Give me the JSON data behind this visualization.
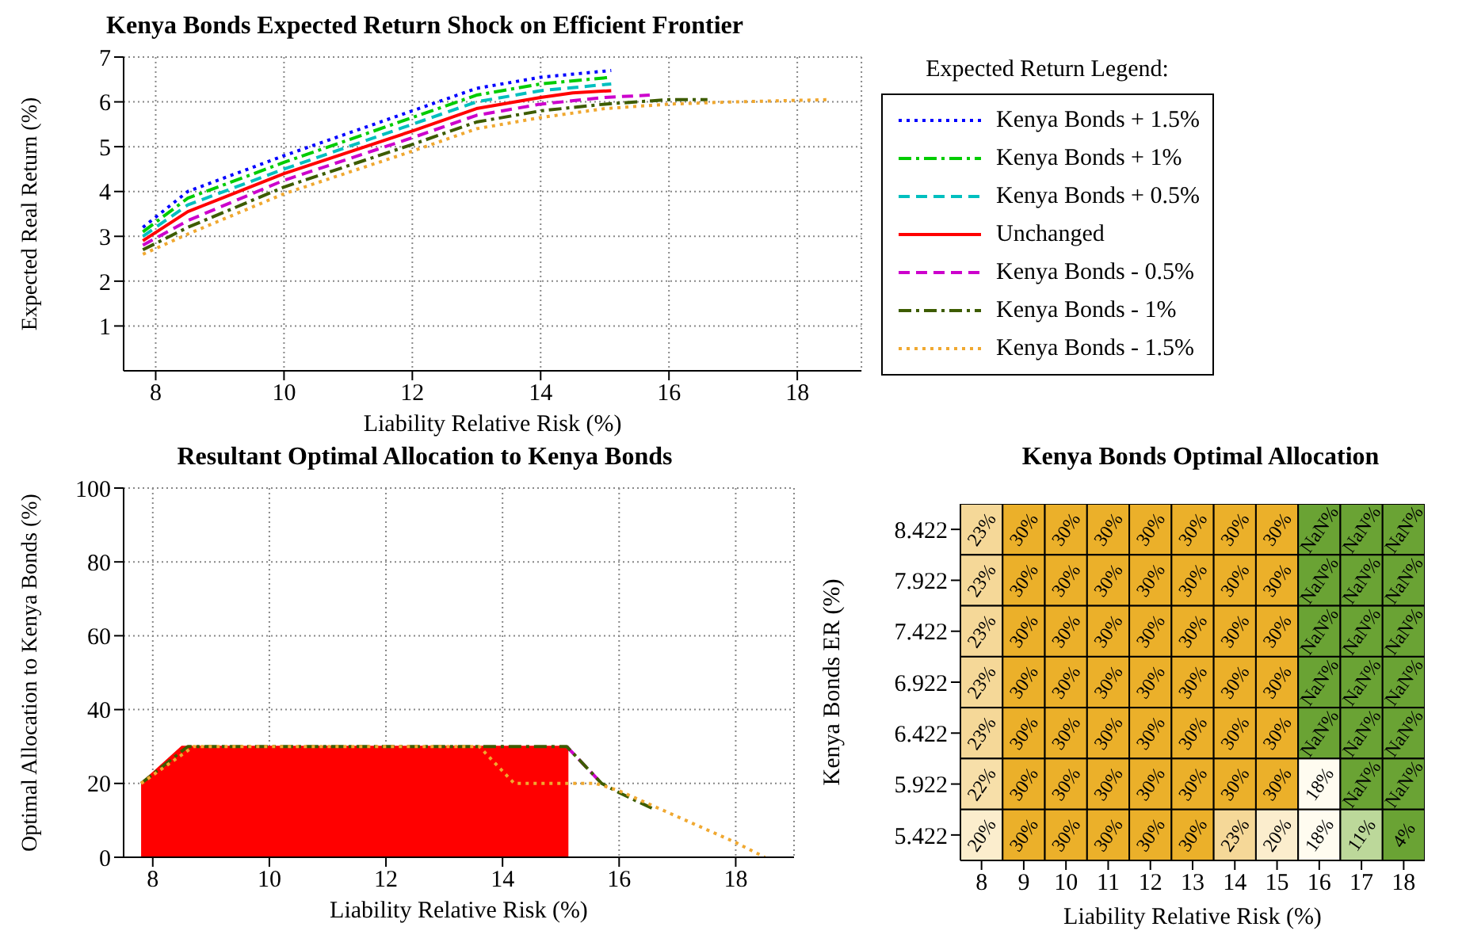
{
  "chart_data": [
    {
      "type": "line",
      "title": "Kenya Bonds Expected Return Shock on Efficient Frontier",
      "xlabel": "Liability Relative Risk (%)",
      "ylabel": "Expected Real Return (%)",
      "legend_title": "Expected Return Legend:",
      "legend": "right",
      "grid": true,
      "marker": "none",
      "xlim": [
        7.5,
        19
      ],
      "xticks": [
        8,
        10,
        12,
        14,
        16,
        18
      ],
      "ylim": [
        0,
        7
      ],
      "yticks": [
        1,
        2,
        3,
        4,
        5,
        6,
        7
      ],
      "series": [
        {
          "name": "Kenya Bonds + 1.5%",
          "color": "#0000ff",
          "line_style": "dotted",
          "x": [
            7.8,
            8.5,
            10,
            12,
            13,
            14,
            15.1
          ],
          "values": [
            3.2,
            4.0,
            4.8,
            5.8,
            6.3,
            6.55,
            6.7
          ]
        },
        {
          "name": "Kenya Bonds + 1%",
          "color": "#00cc00",
          "line_style": "dashdot",
          "x": [
            7.8,
            8.5,
            10,
            12,
            13,
            14,
            15.1
          ],
          "values": [
            3.1,
            3.85,
            4.65,
            5.65,
            6.15,
            6.4,
            6.55
          ]
        },
        {
          "name": "Kenya Bonds + 0.5%",
          "color": "#00bfbf",
          "line_style": "dashed",
          "x": [
            7.8,
            8.5,
            10,
            12,
            13,
            14,
            15.1
          ],
          "values": [
            3.0,
            3.7,
            4.5,
            5.5,
            6.0,
            6.25,
            6.4
          ]
        },
        {
          "name": "Unchanged",
          "color": "#ff0000",
          "line_style": "solid",
          "x": [
            7.8,
            8.5,
            10,
            12,
            13,
            14,
            14.5,
            15.1
          ],
          "values": [
            2.9,
            3.55,
            4.4,
            5.35,
            5.85,
            6.1,
            6.2,
            6.25
          ]
        },
        {
          "name": "Kenya Bonds - 0.5%",
          "color": "#cc00cc",
          "line_style": "dashed",
          "x": [
            7.8,
            8.5,
            10,
            12,
            13,
            14,
            15,
            15.7
          ],
          "values": [
            2.8,
            3.35,
            4.25,
            5.2,
            5.7,
            5.95,
            6.1,
            6.15
          ]
        },
        {
          "name": "Kenya Bonds - 1%",
          "color": "#3d5c00",
          "line_style": "dashdot",
          "x": [
            7.8,
            8.5,
            10,
            12,
            13,
            14,
            15,
            16,
            16.6
          ],
          "values": [
            2.7,
            3.2,
            4.1,
            5.05,
            5.55,
            5.8,
            5.95,
            6.05,
            6.05
          ]
        },
        {
          "name": "Kenya Bonds - 1.5%",
          "color": "#f0a830",
          "line_style": "dotted",
          "x": [
            7.8,
            8.5,
            10,
            12,
            13,
            14,
            15,
            16,
            17,
            18.5
          ],
          "values": [
            2.6,
            3.05,
            3.95,
            4.9,
            5.4,
            5.65,
            5.85,
            5.95,
            6.0,
            6.05
          ]
        }
      ]
    },
    {
      "type": "line",
      "title": "Resultant Optimal Allocation to Kenya Bonds",
      "xlabel": "Liability Relative Risk (%)",
      "ylabel": "Optimal Allocation to Kenya Bonds (%)",
      "grid": true,
      "marker": "none",
      "xlim": [
        7.5,
        19
      ],
      "xticks": [
        8,
        10,
        12,
        14,
        16,
        18
      ],
      "ylim": [
        0,
        100
      ],
      "yticks": [
        0,
        20,
        40,
        60,
        80,
        100
      ],
      "series": [
        {
          "type": "area",
          "color": "#ff0000",
          "line_style": "solid",
          "x": [
            7.8,
            8.5,
            15.13
          ],
          "values": [
            20,
            30,
            30
          ]
        },
        {
          "color": "#cc00cc",
          "line_style": "dashed",
          "x": [
            15.1,
            15.7
          ],
          "values": [
            30,
            20
          ]
        },
        {
          "color": "#3d5c00",
          "line_style": "dashdot",
          "x": [
            7.8,
            8.6,
            15.1,
            15.7,
            16,
            16.6
          ],
          "values": [
            20,
            30,
            30,
            20,
            17.5,
            13
          ]
        },
        {
          "color": "#f0a830",
          "line_style": "dotted",
          "x": [
            7.8,
            8.7,
            13.6,
            14.2,
            15.6,
            16,
            17,
            18,
            18.5
          ],
          "values": [
            20,
            30,
            30,
            20,
            20,
            18,
            11,
            4,
            0
          ]
        }
      ]
    },
    {
      "type": "heatmap",
      "title": "Kenya Bonds Optimal Allocation",
      "xlabel": "Liability Relative Risk (%)",
      "ylabel": "Kenya Bonds ER (%)",
      "categories": [
        "8",
        "9",
        "10",
        "11",
        "12",
        "13",
        "14",
        "15",
        "16",
        "17",
        "18"
      ],
      "y_categories": [
        "8.422",
        "7.922",
        "7.422",
        "6.922",
        "6.422",
        "5.922",
        "5.422"
      ],
      "cells": [
        [
          23,
          30,
          30,
          30,
          30,
          30,
          30,
          30,
          null,
          null,
          null
        ],
        [
          23,
          30,
          30,
          30,
          30,
          30,
          30,
          30,
          null,
          null,
          null
        ],
        [
          23,
          30,
          30,
          30,
          30,
          30,
          30,
          30,
          null,
          null,
          null
        ],
        [
          23,
          30,
          30,
          30,
          30,
          30,
          30,
          30,
          null,
          null,
          null
        ],
        [
          23,
          30,
          30,
          30,
          30,
          30,
          30,
          30,
          null,
          null,
          null
        ],
        [
          22,
          30,
          30,
          30,
          30,
          30,
          30,
          30,
          18,
          null,
          null
        ],
        [
          20,
          30,
          30,
          30,
          30,
          30,
          23,
          20,
          18,
          11,
          4
        ]
      ],
      "cell_labels": [
        [
          "23%",
          "30%",
          "30%",
          "30%",
          "30%",
          "30%",
          "30%",
          "30%",
          "NaN%",
          "NaN%",
          "NaN%"
        ],
        [
          "23%",
          "30%",
          "30%",
          "30%",
          "30%",
          "30%",
          "30%",
          "30%",
          "NaN%",
          "NaN%",
          "NaN%"
        ],
        [
          "23%",
          "30%",
          "30%",
          "30%",
          "30%",
          "30%",
          "30%",
          "30%",
          "NaN%",
          "NaN%",
          "NaN%"
        ],
        [
          "23%",
          "30%",
          "30%",
          "30%",
          "30%",
          "30%",
          "30%",
          "30%",
          "NaN%",
          "NaN%",
          "NaN%"
        ],
        [
          "23%",
          "30%",
          "30%",
          "30%",
          "30%",
          "30%",
          "30%",
          "30%",
          "NaN%",
          "NaN%",
          "NaN%"
        ],
        [
          "22%",
          "30%",
          "30%",
          "30%",
          "30%",
          "30%",
          "30%",
          "30%",
          "18%",
          "NaN%",
          "NaN%"
        ],
        [
          "20%",
          "30%",
          "30%",
          "30%",
          "30%",
          "30%",
          "23%",
          "20%",
          "18%",
          "11%",
          "4%"
        ]
      ]
    }
  ]
}
